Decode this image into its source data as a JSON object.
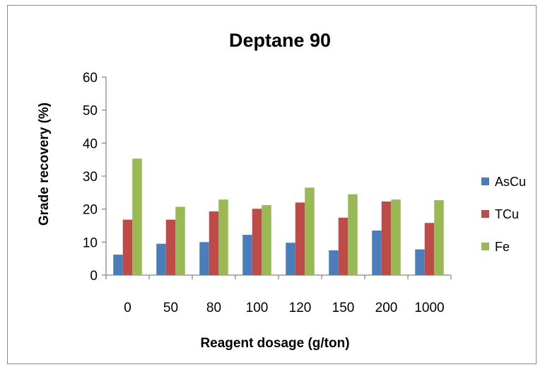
{
  "chart_data": {
    "type": "bar",
    "title": "Deptane 90",
    "xlabel": "Reagent dosage (g/ton)",
    "ylabel": "Grade recovery (%)",
    "ylim": [
      0,
      60
    ],
    "yticks": [
      0,
      10,
      20,
      30,
      40,
      50,
      60
    ],
    "categories": [
      "0",
      "50",
      "80",
      "100",
      "120",
      "150",
      "200",
      "1000"
    ],
    "series": [
      {
        "name": "AsCu",
        "color": "#4a7ebb",
        "values": [
          6.2,
          9.5,
          10.0,
          12.2,
          9.8,
          7.5,
          13.5,
          7.8
        ]
      },
      {
        "name": "TCu",
        "color": "#be4b48",
        "values": [
          16.8,
          16.8,
          19.3,
          20.1,
          22.0,
          17.4,
          22.3,
          15.8
        ]
      },
      {
        "name": "Fe",
        "color": "#98b954",
        "values": [
          35.3,
          20.7,
          22.9,
          21.2,
          26.5,
          24.5,
          22.9,
          22.7
        ]
      }
    ],
    "grid": false,
    "legend_position": "right"
  }
}
